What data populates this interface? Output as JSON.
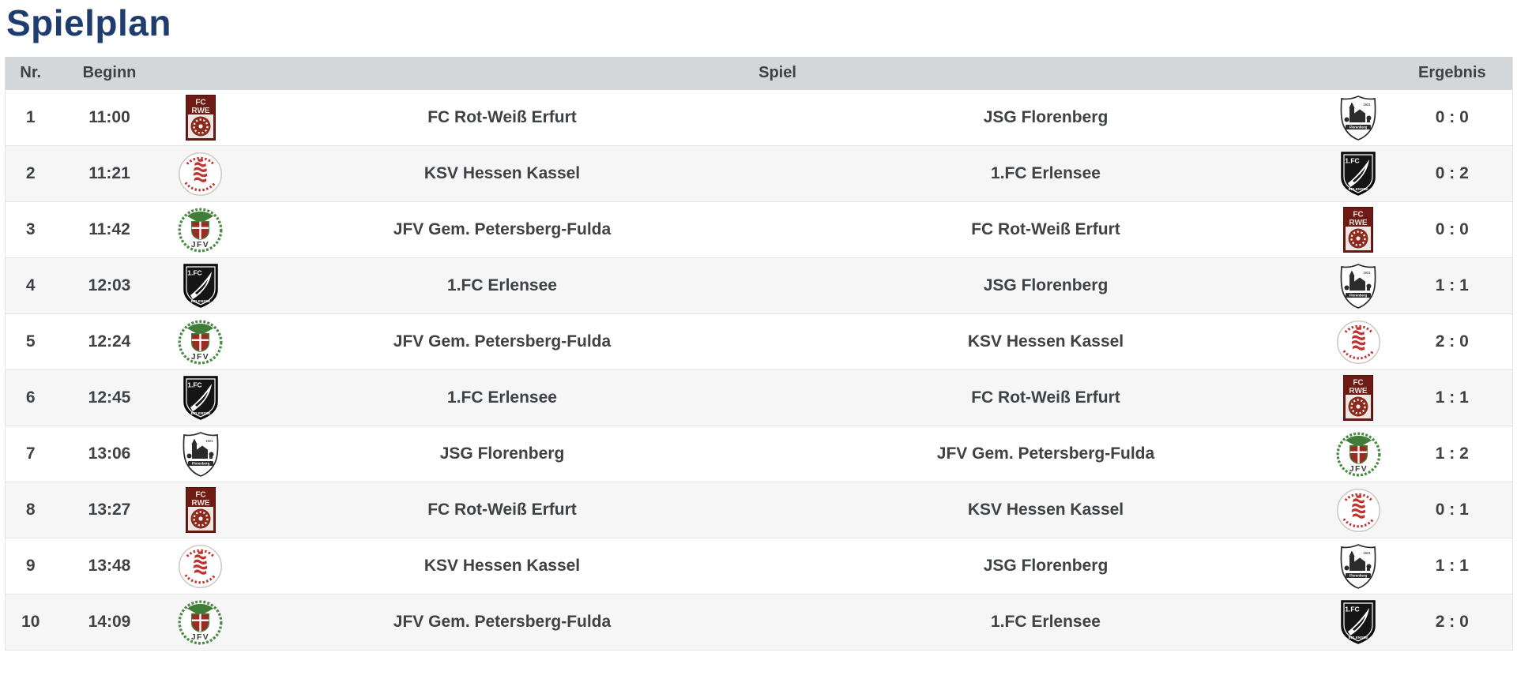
{
  "page": {
    "title": "Spielplan"
  },
  "colors": {
    "title_blue": "#1e3c6d",
    "header_bg": "#d3d7da",
    "row_alt_bg": "#f6f6f6",
    "text": "#3e4245",
    "rwe_red": "#6e1b16",
    "ksv_red": "#c0332e",
    "jfv_green": "#3f7d39",
    "black_white": "#151515"
  },
  "table": {
    "headers": {
      "nr": "Nr.",
      "beginn": "Beginn",
      "spiel": "Spiel",
      "ergebnis": "Ergebnis"
    },
    "rows": [
      {
        "nr": "1",
        "time": "11:00",
        "home": "FC Rot-Weiß Erfurt",
        "away": "JSG Florenberg",
        "home_logo": "logo-rwe",
        "away_logo": "logo-florenberg",
        "score": "0 : 0"
      },
      {
        "nr": "2",
        "time": "11:21",
        "home": "KSV Hessen Kassel",
        "away": "1.FC Erlensee",
        "home_logo": "logo-ksv",
        "away_logo": "logo-erlensee",
        "score": "0 : 2"
      },
      {
        "nr": "3",
        "time": "11:42",
        "home": "JFV Gem. Petersberg-Fulda",
        "away": "FC Rot-Weiß Erfurt",
        "home_logo": "logo-jfv",
        "away_logo": "logo-rwe",
        "score": "0 : 0"
      },
      {
        "nr": "4",
        "time": "12:03",
        "home": "1.FC Erlensee",
        "away": "JSG Florenberg",
        "home_logo": "logo-erlensee",
        "away_logo": "logo-florenberg",
        "score": "1 : 1"
      },
      {
        "nr": "5",
        "time": "12:24",
        "home": "JFV Gem. Petersberg-Fulda",
        "away": "KSV Hessen Kassel",
        "home_logo": "logo-jfv",
        "away_logo": "logo-ksv",
        "score": "2 : 0"
      },
      {
        "nr": "6",
        "time": "12:45",
        "home": "1.FC Erlensee",
        "away": "FC Rot-Weiß Erfurt",
        "home_logo": "logo-erlensee",
        "away_logo": "logo-rwe",
        "score": "1 : 1"
      },
      {
        "nr": "7",
        "time": "13:06",
        "home": "JSG Florenberg",
        "away": "JFV Gem. Petersberg-Fulda",
        "home_logo": "logo-florenberg",
        "away_logo": "logo-jfv",
        "score": "1 : 2"
      },
      {
        "nr": "8",
        "time": "13:27",
        "home": "FC Rot-Weiß Erfurt",
        "away": "KSV Hessen Kassel",
        "home_logo": "logo-rwe",
        "away_logo": "logo-ksv",
        "score": "0 : 1"
      },
      {
        "nr": "9",
        "time": "13:48",
        "home": "KSV Hessen Kassel",
        "away": "JSG Florenberg",
        "home_logo": "logo-ksv",
        "away_logo": "logo-florenberg",
        "score": "1 : 1"
      },
      {
        "nr": "10",
        "time": "14:09",
        "home": "JFV Gem. Petersberg-Fulda",
        "away": "1.FC Erlensee",
        "home_logo": "logo-jfv",
        "away_logo": "logo-erlensee",
        "score": "2 : 0"
      }
    ]
  }
}
